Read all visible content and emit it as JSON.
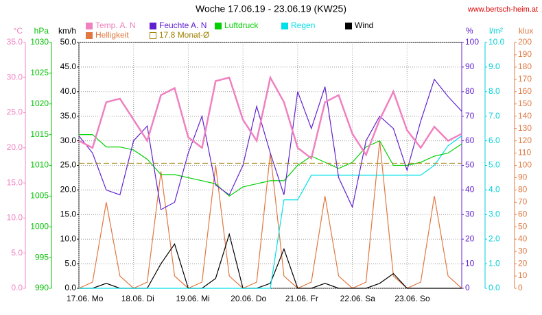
{
  "chart_data": {
    "type": "line",
    "title": "Woche 17.06.19 - 23.06.19 (KW25)",
    "source": "www.bertsch-heim.at",
    "grid": true,
    "grid_axis": 2,
    "categories": [
      "17.06. Mo",
      null,
      null,
      null,
      "18.06. Di",
      null,
      null,
      null,
      "19.06. Mi",
      null,
      null,
      null,
      "20.06. Do",
      null,
      null,
      null,
      "21.06. Fr",
      null,
      null,
      null,
      "22.06. Sa",
      null,
      null,
      null,
      "23.06. So",
      null,
      null,
      null,
      null
    ],
    "axes": [
      {
        "unit": "°C",
        "side": "left",
        "color": "#f080c0",
        "lim": [
          0,
          35
        ],
        "ticks": [
          {
            "value": 0,
            "label": "0.0"
          },
          {
            "value": 5,
            "label": "5.0"
          },
          {
            "value": 10,
            "label": "10.0"
          },
          {
            "value": 15,
            "label": "15.0"
          },
          {
            "value": 20,
            "label": "20.0"
          },
          {
            "value": 25,
            "label": "25.0"
          },
          {
            "value": 30,
            "label": "30.0"
          },
          {
            "value": 35,
            "label": "35.0"
          }
        ]
      },
      {
        "unit": "hPa",
        "side": "left",
        "color": "#00c000",
        "lim": [
          990,
          1030
        ],
        "ticks": [
          990,
          995,
          1000,
          1005,
          1010,
          1015,
          1020,
          1025,
          1030
        ]
      },
      {
        "unit": "km/h",
        "side": "left",
        "color": "#000000",
        "lim": [
          0,
          50
        ],
        "ticks": [
          {
            "value": 0,
            "label": "0.0"
          },
          {
            "value": 5,
            "label": "5.0"
          },
          {
            "value": 10,
            "label": "10.0"
          },
          {
            "value": 15,
            "label": "15.0"
          },
          {
            "value": 20,
            "label": "20.0"
          },
          {
            "value": 25,
            "label": "25.0"
          },
          {
            "value": 30,
            "label": "30.0"
          },
          {
            "value": 35,
            "label": "35.0"
          },
          {
            "value": 40,
            "label": "40.0"
          },
          {
            "value": 45,
            "label": "45.0"
          },
          {
            "value": 50,
            "label": "50.0"
          }
        ]
      },
      {
        "unit": "%",
        "side": "right",
        "color": "#6020d0",
        "lim": [
          0,
          100
        ],
        "ticks": [
          0,
          10,
          20,
          30,
          40,
          50,
          60,
          70,
          80,
          90,
          100
        ]
      },
      {
        "unit": "l/m²",
        "side": "right",
        "color": "#00d0d8",
        "lim": [
          0,
          10
        ],
        "ticks": [
          {
            "value": 0,
            "label": "0.0"
          },
          {
            "value": 1,
            "label": "1.0"
          },
          {
            "value": 2,
            "label": "2.0"
          },
          {
            "value": 3,
            "label": "3.0"
          },
          {
            "value": 4,
            "label": "4.0"
          },
          {
            "value": 5,
            "label": "5.0"
          },
          {
            "value": 6,
            "label": "6.0"
          },
          {
            "value": 7,
            "label": "7.0"
          },
          {
            "value": 8,
            "label": "8.0"
          },
          {
            "value": 9,
            "label": "9.0"
          },
          {
            "value": 10,
            "label": "10.0"
          }
        ]
      },
      {
        "unit": "klux",
        "side": "right",
        "color": "#e07840",
        "lim": [
          0,
          200
        ],
        "ticks": [
          0,
          10,
          20,
          30,
          40,
          50,
          60,
          70,
          80,
          90,
          100,
          110,
          120,
          130,
          140,
          150,
          160,
          170,
          180,
          190,
          200
        ]
      }
    ],
    "series": [
      {
        "name": "Temp. A. N",
        "color": "#f080c0",
        "axis": 0,
        "values": [
          21,
          20,
          26.5,
          27,
          24,
          21,
          27.5,
          28.5,
          21.5,
          20,
          29.5,
          30,
          24,
          21,
          30,
          26.5,
          20,
          18.5,
          26.5,
          27.5,
          22,
          19,
          24,
          28,
          22.5,
          20,
          23,
          21,
          22
        ]
      },
      {
        "name": "Feuchte A. N",
        "color": "#6020d0",
        "axis": 3,
        "values": [
          62,
          55,
          40,
          38,
          60,
          66,
          32,
          35,
          55,
          70,
          42,
          38,
          50,
          74,
          55,
          38,
          80,
          65,
          82,
          45,
          33,
          60,
          70,
          65,
          48,
          68,
          85,
          78,
          72
        ]
      },
      {
        "name": "Luftdruck",
        "color": "#00d000",
        "axis": 1,
        "values": [
          1015,
          1015,
          1013,
          1013,
          1012.5,
          1011,
          1008.5,
          1008.5,
          1008,
          1007.5,
          1007,
          1005,
          1006.5,
          1007,
          1007.5,
          1007.5,
          1010,
          1011.5,
          1010.5,
          1009.5,
          1010.5,
          1013,
          1014,
          1010,
          1010,
          1010.5,
          1011.5,
          1012,
          1013.5
        ]
      },
      {
        "name": "Regen",
        "color": "#00e0e8",
        "axis": 4,
        "values": [
          0,
          0,
          0,
          0,
          0,
          0,
          0,
          0,
          0,
          0,
          0,
          0,
          0,
          0,
          0,
          3.6,
          3.6,
          4.6,
          4.6,
          4.6,
          4.6,
          4.6,
          4.6,
          4.6,
          4.6,
          4.6,
          5,
          5.8,
          6.2
        ]
      },
      {
        "name": "Wind",
        "color": "#000000",
        "axis": 2,
        "values": [
          0,
          0,
          1,
          0,
          0,
          0,
          5,
          9,
          0,
          0,
          2,
          11,
          0,
          0,
          1,
          8,
          0,
          0,
          1,
          0,
          0,
          0,
          1,
          3,
          0,
          0,
          0,
          0,
          0
        ]
      },
      {
        "name": "Helligkeit",
        "color": "#e07840",
        "axis": 5,
        "values": [
          0,
          5,
          70,
          10,
          0,
          5,
          95,
          10,
          0,
          5,
          100,
          10,
          0,
          5,
          110,
          10,
          0,
          5,
          75,
          10,
          0,
          5,
          120,
          10,
          0,
          5,
          75,
          10,
          0
        ]
      }
    ],
    "reference": {
      "name": "17.8 Monat-Ø",
      "value": 17.8,
      "axis": 0,
      "color": "#a08000"
    }
  }
}
